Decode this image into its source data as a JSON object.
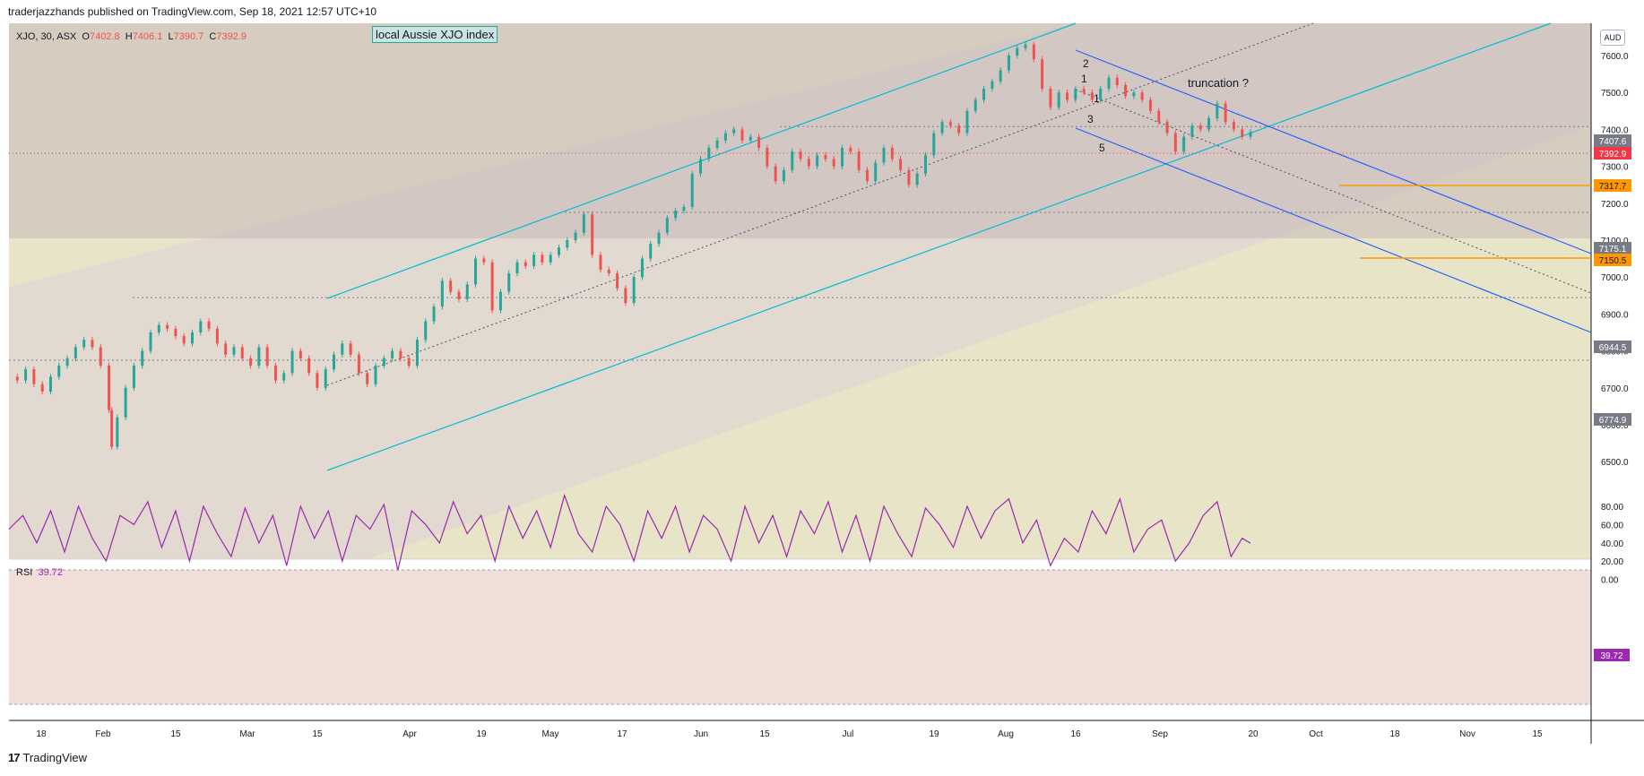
{
  "header": {
    "text": "traderjazzhands published on TradingView.com, Sep 18, 2021 12:57 UTC+10"
  },
  "footer": {
    "logo": "17",
    "brand": "TradingView"
  },
  "legend": {
    "symbol": "XJO, 30, ASX",
    "o_label": "O",
    "o": "7402.8",
    "h_label": "H",
    "h": "7406.1",
    "l_label": "L",
    "l": "7390.7",
    "c_label": "C",
    "c": "7392.9"
  },
  "annotations": {
    "index_label": "local Aussie XJO index",
    "truncation": "truncation ?",
    "waves": [
      "2",
      "1",
      "1",
      "3",
      "5"
    ]
  },
  "currency": "AUD",
  "rsi": {
    "label": "RSI",
    "value": "39.72",
    "levels": [
      80,
      60,
      40,
      20,
      0
    ],
    "level_labels": [
      "80.00",
      "60.00",
      "40.00",
      "20.00",
      "0.00"
    ],
    "overbought": 70,
    "oversold": 30
  },
  "colors": {
    "up": "#26a69a",
    "down": "#ef5350",
    "channel": "#00bcd4",
    "down_channel": "#2962ff",
    "orange": "#ff9800",
    "rsi": "#9c27b0",
    "last_price": "#f23645"
  },
  "chart_data": {
    "type": "candlestick",
    "symbol": "XJO",
    "interval": "30",
    "ylim": [
      6450,
      7700
    ],
    "y_ticks": [
      7600,
      7500,
      7400,
      7300,
      7200,
      7100,
      7000,
      6900,
      6800,
      6700,
      6600,
      6500
    ],
    "y_tick_labels": [
      "7600.0",
      "7500.0",
      "7400.0",
      "7300.0",
      "7200.0",
      "7100.0",
      "7000.0",
      "6900.0",
      "6800.0",
      "6700.0",
      "6600.0",
      "6500.0"
    ],
    "x_tick_labels": [
      "18",
      "Feb",
      "15",
      "Mar",
      "15",
      "Apr",
      "19",
      "May",
      "17",
      "Jun",
      "15",
      "Jul",
      "19",
      "Aug",
      "16",
      "Sep",
      "20",
      "Oct",
      "18",
      "Nov",
      "15"
    ],
    "price_labels": [
      {
        "value": "7407.6",
        "style": "gray"
      },
      {
        "value": "7392.9",
        "style": "red"
      },
      {
        "value": "7317.7",
        "style": "orange"
      },
      {
        "value": "7175.1",
        "style": "gray"
      },
      {
        "value": "7150.5",
        "style": "orange"
      },
      {
        "value": "6944.5",
        "style": "gray"
      },
      {
        "value": "6774.9",
        "style": "gray"
      }
    ],
    "close_path": [
      [
        0,
        6730
      ],
      [
        3,
        6720
      ],
      [
        6,
        6750
      ],
      [
        9,
        6710
      ],
      [
        12,
        6690
      ],
      [
        15,
        6730
      ],
      [
        18,
        6760
      ],
      [
        21,
        6780
      ],
      [
        24,
        6810
      ],
      [
        27,
        6830
      ],
      [
        30,
        6810
      ],
      [
        33,
        6760
      ],
      [
        36,
        6640
      ],
      [
        37,
        6540
      ],
      [
        39,
        6620
      ],
      [
        42,
        6700
      ],
      [
        45,
        6760
      ],
      [
        48,
        6800
      ],
      [
        51,
        6850
      ],
      [
        54,
        6870
      ],
      [
        57,
        6860
      ],
      [
        60,
        6840
      ],
      [
        63,
        6820
      ],
      [
        66,
        6850
      ],
      [
        69,
        6880
      ],
      [
        72,
        6860
      ],
      [
        75,
        6820
      ],
      [
        78,
        6790
      ],
      [
        81,
        6810
      ],
      [
        84,
        6780
      ],
      [
        87,
        6760
      ],
      [
        90,
        6810
      ],
      [
        93,
        6760
      ],
      [
        96,
        6720
      ],
      [
        99,
        6740
      ],
      [
        102,
        6800
      ],
      [
        105,
        6780
      ],
      [
        108,
        6740
      ],
      [
        111,
        6700
      ],
      [
        114,
        6750
      ],
      [
        117,
        6790
      ],
      [
        120,
        6820
      ],
      [
        123,
        6790
      ],
      [
        126,
        6740
      ],
      [
        129,
        6710
      ],
      [
        132,
        6760
      ],
      [
        135,
        6780
      ],
      [
        138,
        6800
      ],
      [
        141,
        6780
      ],
      [
        144,
        6760
      ],
      [
        147,
        6830
      ],
      [
        150,
        6880
      ],
      [
        153,
        6920
      ],
      [
        156,
        6990
      ],
      [
        159,
        6960
      ],
      [
        162,
        6940
      ],
      [
        165,
        6980
      ],
      [
        168,
        7050
      ],
      [
        171,
        7040
      ],
      [
        174,
        6910
      ],
      [
        177,
        6960
      ],
      [
        180,
        7010
      ],
      [
        183,
        7040
      ],
      [
        186,
        7030
      ],
      [
        189,
        7060
      ],
      [
        192,
        7040
      ],
      [
        195,
        7060
      ],
      [
        198,
        7080
      ],
      [
        201,
        7100
      ],
      [
        204,
        7120
      ],
      [
        207,
        7170
      ],
      [
        210,
        7060
      ],
      [
        213,
        7020
      ],
      [
        216,
        7010
      ],
      [
        219,
        6970
      ],
      [
        222,
        6930
      ],
      [
        225,
        7000
      ],
      [
        228,
        7050
      ],
      [
        231,
        7090
      ],
      [
        234,
        7120
      ],
      [
        237,
        7160
      ],
      [
        240,
        7180
      ],
      [
        243,
        7190
      ],
      [
        246,
        7280
      ],
      [
        249,
        7320
      ],
      [
        252,
        7350
      ],
      [
        255,
        7370
      ],
      [
        258,
        7390
      ],
      [
        261,
        7400
      ],
      [
        264,
        7370
      ],
      [
        267,
        7380
      ],
      [
        270,
        7350
      ],
      [
        273,
        7300
      ],
      [
        276,
        7260
      ],
      [
        279,
        7290
      ],
      [
        282,
        7340
      ],
      [
        285,
        7320
      ],
      [
        288,
        7300
      ],
      [
        291,
        7330
      ],
      [
        294,
        7320
      ],
      [
        297,
        7300
      ],
      [
        300,
        7350
      ],
      [
        303,
        7340
      ],
      [
        306,
        7290
      ],
      [
        309,
        7260
      ],
      [
        312,
        7310
      ],
      [
        315,
        7350
      ],
      [
        318,
        7320
      ],
      [
        321,
        7290
      ],
      [
        324,
        7250
      ],
      [
        327,
        7280
      ],
      [
        330,
        7330
      ],
      [
        333,
        7390
      ],
      [
        336,
        7420
      ],
      [
        339,
        7410
      ],
      [
        342,
        7390
      ],
      [
        345,
        7450
      ],
      [
        348,
        7480
      ],
      [
        351,
        7510
      ],
      [
        354,
        7530
      ],
      [
        357,
        7560
      ],
      [
        360,
        7600
      ],
      [
        363,
        7620
      ],
      [
        366,
        7630
      ],
      [
        369,
        7590
      ],
      [
        372,
        7510
      ],
      [
        375,
        7460
      ],
      [
        378,
        7500
      ],
      [
        381,
        7480
      ],
      [
        384,
        7510
      ],
      [
        387,
        7500
      ],
      [
        390,
        7480
      ],
      [
        393,
        7510
      ],
      [
        396,
        7540
      ],
      [
        399,
        7520
      ],
      [
        402,
        7490
      ],
      [
        405,
        7500
      ],
      [
        408,
        7480
      ],
      [
        411,
        7450
      ],
      [
        414,
        7420
      ],
      [
        417,
        7390
      ],
      [
        420,
        7340
      ],
      [
        423,
        7380
      ],
      [
        426,
        7410
      ],
      [
        429,
        7400
      ],
      [
        432,
        7430
      ],
      [
        435,
        7470
      ],
      [
        438,
        7420
      ],
      [
        441,
        7400
      ],
      [
        444,
        7380
      ],
      [
        447,
        7393
      ]
    ],
    "rsi_path": [
      [
        0,
        55
      ],
      [
        5,
        70
      ],
      [
        10,
        40
      ],
      [
        15,
        75
      ],
      [
        20,
        30
      ],
      [
        25,
        80
      ],
      [
        30,
        45
      ],
      [
        35,
        20
      ],
      [
        40,
        70
      ],
      [
        45,
        60
      ],
      [
        50,
        85
      ],
      [
        55,
        35
      ],
      [
        60,
        75
      ],
      [
        65,
        20
      ],
      [
        70,
        80
      ],
      [
        75,
        50
      ],
      [
        80,
        25
      ],
      [
        85,
        78
      ],
      [
        90,
        40
      ],
      [
        95,
        70
      ],
      [
        100,
        15
      ],
      [
        105,
        80
      ],
      [
        110,
        45
      ],
      [
        115,
        75
      ],
      [
        120,
        20
      ],
      [
        125,
        70
      ],
      [
        130,
        55
      ],
      [
        135,
        82
      ],
      [
        140,
        10
      ],
      [
        145,
        75
      ],
      [
        150,
        60
      ],
      [
        155,
        40
      ],
      [
        160,
        85
      ],
      [
        165,
        50
      ],
      [
        170,
        70
      ],
      [
        175,
        20
      ],
      [
        180,
        80
      ],
      [
        185,
        45
      ],
      [
        190,
        75
      ],
      [
        195,
        35
      ],
      [
        200,
        92
      ],
      [
        205,
        50
      ],
      [
        210,
        30
      ],
      [
        215,
        80
      ],
      [
        220,
        60
      ],
      [
        225,
        20
      ],
      [
        230,
        75
      ],
      [
        235,
        45
      ],
      [
        240,
        80
      ],
      [
        245,
        30
      ],
      [
        250,
        70
      ],
      [
        255,
        55
      ],
      [
        260,
        20
      ],
      [
        265,
        80
      ],
      [
        270,
        40
      ],
      [
        275,
        70
      ],
      [
        280,
        25
      ],
      [
        285,
        75
      ],
      [
        290,
        50
      ],
      [
        295,
        85
      ],
      [
        300,
        30
      ],
      [
        305,
        70
      ],
      [
        310,
        20
      ],
      [
        315,
        80
      ],
      [
        320,
        50
      ],
      [
        325,
        25
      ],
      [
        330,
        78
      ],
      [
        335,
        60
      ],
      [
        340,
        35
      ],
      [
        345,
        80
      ],
      [
        350,
        45
      ],
      [
        355,
        75
      ],
      [
        360,
        88
      ],
      [
        365,
        40
      ],
      [
        370,
        65
      ],
      [
        375,
        15
      ],
      [
        380,
        45
      ],
      [
        385,
        30
      ],
      [
        390,
        75
      ],
      [
        395,
        50
      ],
      [
        400,
        88
      ],
      [
        405,
        30
      ],
      [
        410,
        55
      ],
      [
        415,
        65
      ],
      [
        420,
        20
      ],
      [
        425,
        40
      ],
      [
        430,
        70
      ],
      [
        435,
        85
      ],
      [
        440,
        25
      ],
      [
        444,
        45
      ],
      [
        447,
        39.72
      ]
    ]
  }
}
